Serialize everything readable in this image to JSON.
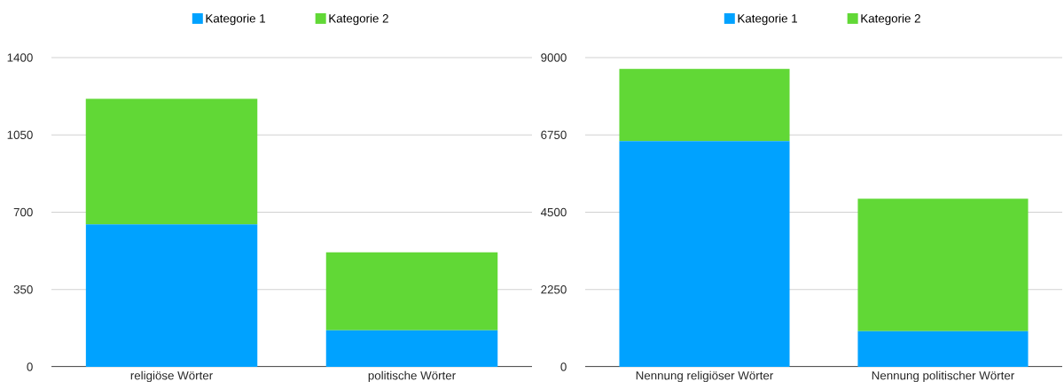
{
  "chart_data": [
    {
      "type": "bar",
      "stacked": true,
      "categories": [
        "religiöse Wörter",
        "politische Wörter"
      ],
      "series": [
        {
          "name": "Kategorie 1",
          "color": "#00a2ff",
          "values": [
            645,
            165
          ]
        },
        {
          "name": "Kategorie 2",
          "color": "#61d836",
          "values": [
            568,
            353
          ]
        }
      ],
      "ylim": [
        0,
        1400
      ],
      "yticks": [
        0,
        350,
        700,
        1050,
        1400
      ],
      "grid": "y",
      "legend": "top"
    },
    {
      "type": "bar",
      "stacked": true,
      "categories": [
        "Nennung religiöser Wörter",
        "Nennung politischer Wörter"
      ],
      "series": [
        {
          "name": "Kategorie 1",
          "color": "#00a2ff",
          "values": [
            6570,
            1040
          ]
        },
        {
          "name": "Kategorie 2",
          "color": "#61d836",
          "values": [
            2100,
            3850
          ]
        }
      ],
      "ylim": [
        0,
        9000
      ],
      "yticks": [
        0,
        2250,
        4500,
        6750,
        9000
      ],
      "grid": "y",
      "legend": "top"
    }
  ]
}
